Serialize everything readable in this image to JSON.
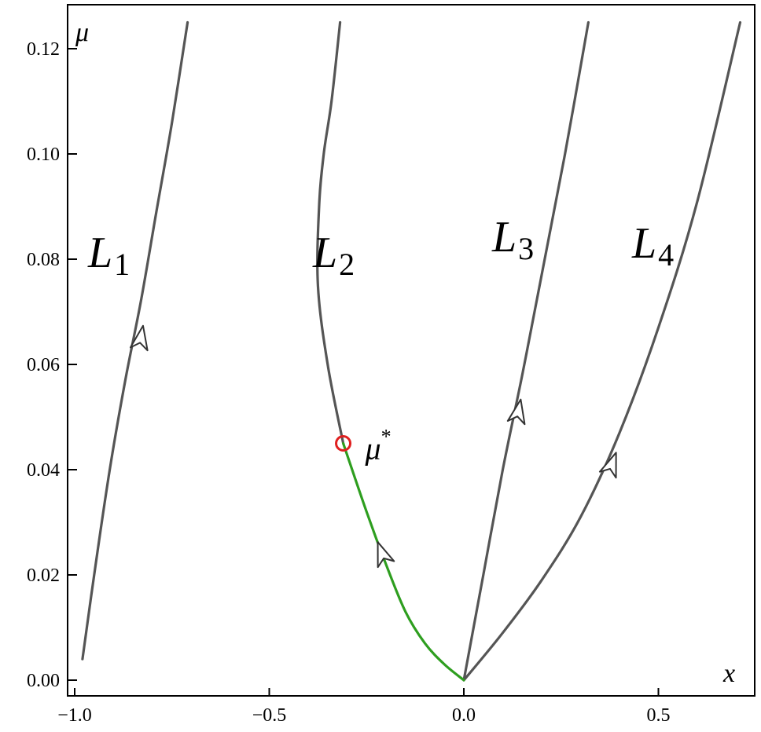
{
  "chart_data": {
    "type": "line",
    "xlabel": "x",
    "ylabel": "μ",
    "xlim": [
      -1.0,
      0.72
    ],
    "ylim": [
      0.0,
      0.126
    ],
    "xticks": [
      "-1.0",
      "-0.5",
      "0.0",
      "0.5"
    ],
    "yticks": [
      "0.00",
      "0.02",
      "0.04",
      "0.06",
      "0.08",
      "0.10",
      "0.12"
    ],
    "grid": false,
    "colors": {
      "curve": "#555555",
      "stable_segment": "#2e9e1f",
      "marker": "#e02020"
    },
    "series": [
      {
        "name": "L",
        "subscript": "1",
        "x": [
          -0.98,
          -0.95,
          -0.91,
          -0.87,
          -0.83,
          -0.79,
          -0.75,
          -0.71
        ],
        "y": [
          0.004,
          0.02,
          0.04,
          0.057,
          0.072,
          0.089,
          0.106,
          0.125
        ]
      },
      {
        "name": "L",
        "subscript": "2",
        "x": [
          -0.31,
          -0.35,
          -0.375,
          -0.372,
          -0.36,
          -0.34,
          -0.318
        ],
        "y": [
          0.045,
          0.06,
          0.075,
          0.09,
          0.1,
          0.11,
          0.125
        ]
      },
      {
        "name": "L",
        "subscript": "3",
        "x": [
          0.0,
          0.05,
          0.1,
          0.15,
          0.2,
          0.26,
          0.32
        ],
        "y": [
          0.0,
          0.02,
          0.04,
          0.058,
          0.077,
          0.1,
          0.125
        ]
      },
      {
        "name": "L",
        "subscript": "4",
        "x": [
          0.0,
          0.1,
          0.2,
          0.3,
          0.4,
          0.5,
          0.6,
          0.71
        ],
        "y": [
          0.0,
          0.009,
          0.019,
          0.031,
          0.047,
          0.067,
          0.091,
          0.125
        ]
      },
      {
        "name": "",
        "role": "stable segment of L2",
        "x": [
          0.0,
          -0.05,
          -0.1,
          -0.15,
          -0.2,
          -0.25,
          -0.31
        ],
        "y": [
          0.0,
          0.003,
          0.007,
          0.013,
          0.022,
          0.032,
          0.045
        ]
      }
    ],
    "arrows": [
      {
        "series": 0,
        "x": -0.83,
        "y": 0.065
      },
      {
        "series": 4,
        "x": -0.21,
        "y": 0.024
      },
      {
        "series": 2,
        "x": 0.14,
        "y": 0.051
      },
      {
        "series": 3,
        "x": 0.38,
        "y": 0.041
      }
    ],
    "annotations": [
      {
        "text": "μ",
        "superscript": "*",
        "x": -0.31,
        "y": 0.045
      }
    ]
  }
}
